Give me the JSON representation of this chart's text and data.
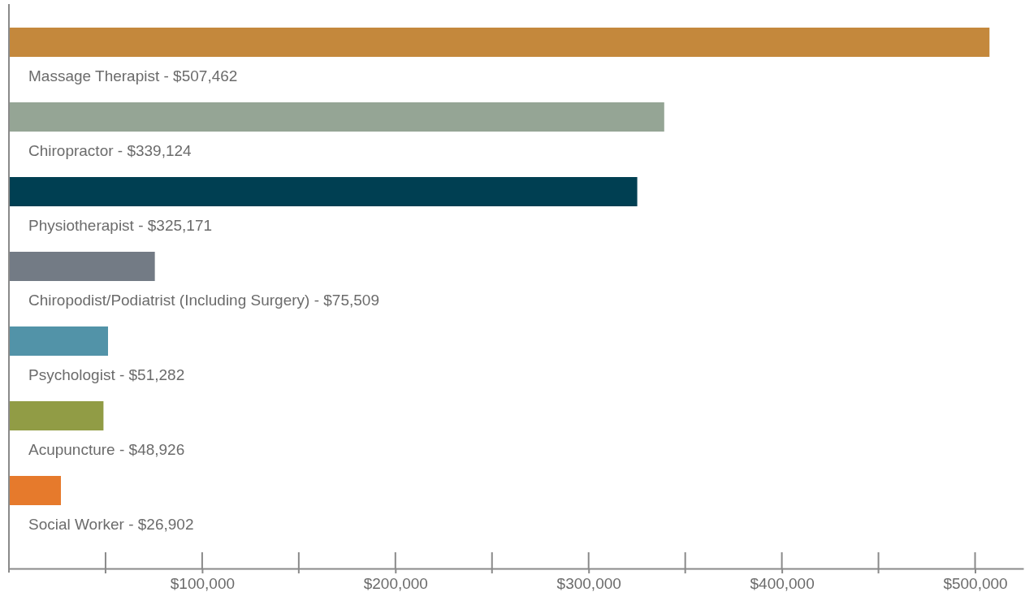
{
  "chart_data": {
    "type": "bar",
    "orientation": "horizontal",
    "categories": [
      "Massage Therapist - $507,462",
      "Chiropractor - $339,124",
      "Physiotherapist - $325,171",
      "Chiropodist/Podiatrist (Including Surgery) - $75,509",
      "Psychologist - $51,282",
      "Acupuncture - $48,926",
      "Social Worker - $26,902"
    ],
    "values": [
      507462,
      339124,
      325171,
      75509,
      51282,
      48926,
      26902
    ],
    "colors": [
      "#c4883c",
      "#95a595",
      "#003f52",
      "#737b85",
      "#5293a8",
      "#919c45",
      "#e67a2c"
    ],
    "xlim": [
      0,
      525000
    ],
    "xticks": [
      {
        "value": 100000,
        "label": "$100,000"
      },
      {
        "value": 200000,
        "label": "$200,000"
      },
      {
        "value": 300000,
        "label": "$300,000"
      },
      {
        "value": 400000,
        "label": "$400,000"
      },
      {
        "value": 500000,
        "label": "$500,000"
      }
    ]
  }
}
